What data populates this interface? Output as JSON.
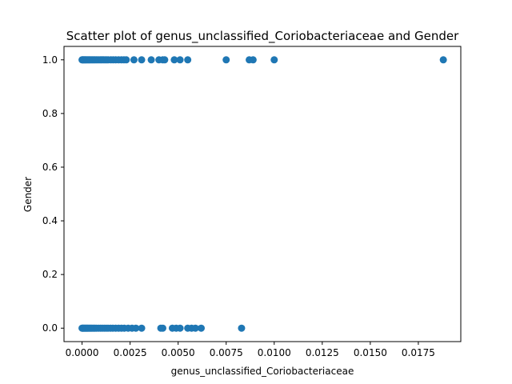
{
  "chart_data": {
    "type": "scatter",
    "title": "Scatter plot of genus_unclassified_Coriobacteriaceae and Gender",
    "xlabel": "genus_unclassified_Coriobacteriaceae",
    "ylabel": "Gender",
    "xlim": [
      -0.00094,
      0.01971
    ],
    "ylim": [
      -0.05,
      1.05
    ],
    "x_ticks": [
      "0.0000",
      "0.0025",
      "0.0050",
      "0.0075",
      "0.0100",
      "0.0125",
      "0.0150",
      "0.0175"
    ],
    "y_ticks": [
      "0.0",
      "0.2",
      "0.4",
      "0.6",
      "0.8",
      "1.0"
    ],
    "grid": false,
    "marker_color": "#1f77b4",
    "series": [
      {
        "points": [
          [
            0.0,
            1
          ],
          [
            3e-05,
            1
          ],
          [
            6e-05,
            1
          ],
          [
            0.0001,
            1
          ],
          [
            0.00014,
            1
          ],
          [
            0.00018,
            1
          ],
          [
            0.00022,
            1
          ],
          [
            0.00027,
            1
          ],
          [
            0.00032,
            1
          ],
          [
            0.00037,
            1
          ],
          [
            0.00042,
            1
          ],
          [
            0.00048,
            1
          ],
          [
            0.00054,
            1
          ],
          [
            0.0006,
            1
          ],
          [
            0.00066,
            1
          ],
          [
            0.00073,
            1
          ],
          [
            0.0008,
            1
          ],
          [
            0.00088,
            1
          ],
          [
            0.00096,
            1
          ],
          [
            0.00104,
            1
          ],
          [
            0.00112,
            1
          ],
          [
            0.0012,
            1
          ],
          [
            0.00128,
            1
          ],
          [
            0.00136,
            1
          ],
          [
            0.0015,
            1
          ],
          [
            0.00162,
            1
          ],
          [
            0.00175,
            1
          ],
          [
            0.0019,
            1
          ],
          [
            0.00205,
            1
          ],
          [
            0.00218,
            1
          ],
          [
            0.0023,
            1
          ],
          [
            0.0027,
            1
          ],
          [
            0.0031,
            1
          ],
          [
            0.0036,
            1
          ],
          [
            0.004,
            1
          ],
          [
            0.0042,
            1
          ],
          [
            0.0043,
            1
          ],
          [
            0.0048,
            1
          ],
          [
            0.0051,
            1
          ],
          [
            0.0055,
            1
          ],
          [
            0.0075,
            1
          ],
          [
            0.0087,
            1
          ],
          [
            0.0089,
            1
          ],
          [
            0.01,
            1
          ],
          [
            0.0188,
            1
          ],
          [
            0.0,
            0
          ],
          [
            3e-05,
            0
          ],
          [
            6e-05,
            0
          ],
          [
            0.0001,
            0
          ],
          [
            0.00014,
            0
          ],
          [
            0.00018,
            0
          ],
          [
            0.00022,
            0
          ],
          [
            0.00026,
            0
          ],
          [
            0.0003,
            0
          ],
          [
            0.00035,
            0
          ],
          [
            0.0004,
            0
          ],
          [
            0.00045,
            0
          ],
          [
            0.0005,
            0
          ],
          [
            0.00056,
            0
          ],
          [
            0.00062,
            0
          ],
          [
            0.00068,
            0
          ],
          [
            0.00075,
            0
          ],
          [
            0.00085,
            0
          ],
          [
            0.00095,
            0
          ],
          [
            0.00105,
            0
          ],
          [
            0.00115,
            0
          ],
          [
            0.00125,
            0
          ],
          [
            0.00135,
            0
          ],
          [
            0.00148,
            0
          ],
          [
            0.0016,
            0
          ],
          [
            0.00175,
            0
          ],
          [
            0.0019,
            0
          ],
          [
            0.00205,
            0
          ],
          [
            0.0022,
            0
          ],
          [
            0.0024,
            0
          ],
          [
            0.0026,
            0
          ],
          [
            0.0028,
            0
          ],
          [
            0.0031,
            0
          ],
          [
            0.0041,
            0
          ],
          [
            0.0042,
            0
          ],
          [
            0.0047,
            0
          ],
          [
            0.0049,
            0
          ],
          [
            0.0051,
            0
          ],
          [
            0.0055,
            0
          ],
          [
            0.0057,
            0
          ],
          [
            0.0059,
            0
          ],
          [
            0.0062,
            0
          ],
          [
            0.0083,
            0
          ]
        ]
      }
    ]
  }
}
